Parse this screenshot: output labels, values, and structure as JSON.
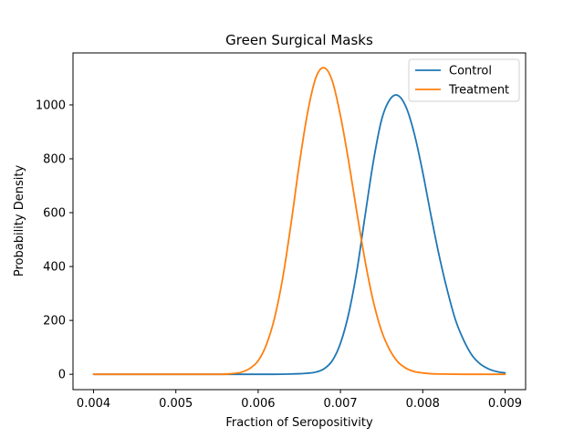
{
  "chart_data": {
    "type": "line",
    "title": "Green Surgical Masks",
    "xlabel": "Fraction of Seropositivity",
    "ylabel": "Probability Density",
    "xlim": [
      0.00375,
      0.00925
    ],
    "ylim": [
      -57,
      1193
    ],
    "x_ticks": [
      0.004,
      0.005,
      0.006,
      0.007,
      0.008,
      0.009
    ],
    "x_tick_labels": [
      "0.004",
      "0.005",
      "0.006",
      "0.007",
      "0.008",
      "0.009"
    ],
    "y_ticks": [
      0,
      200,
      400,
      600,
      800,
      1000
    ],
    "y_tick_labels": [
      "0",
      "200",
      "400",
      "600",
      "800",
      "1000"
    ],
    "grid": false,
    "legend_position": "top-right",
    "series": [
      {
        "name": "Control",
        "color": "#1f77b4",
        "x": [
          0.004,
          0.0055,
          0.006,
          0.0062,
          0.0064,
          0.0065,
          0.0066,
          0.0067,
          0.0068,
          0.0069,
          0.007,
          0.0071,
          0.0072,
          0.0073,
          0.0074,
          0.0075,
          0.0076,
          0.0077,
          0.0078,
          0.0079,
          0.008,
          0.0081,
          0.0082,
          0.0083,
          0.0084,
          0.0085,
          0.0086,
          0.0087,
          0.0088,
          0.0089,
          0.009
        ],
        "y": [
          0,
          0,
          0,
          0,
          1,
          2,
          4,
          8,
          20,
          50,
          115,
          225,
          385,
          590,
          790,
          945,
          1020,
          1035,
          990,
          890,
          750,
          590,
          440,
          310,
          200,
          125,
          70,
          38,
          20,
          10,
          5
        ]
      },
      {
        "name": "Treatment",
        "color": "#ff7f0e",
        "x": [
          0.004,
          0.0055,
          0.0056,
          0.0057,
          0.0058,
          0.0059,
          0.006,
          0.0061,
          0.0062,
          0.0063,
          0.0064,
          0.0065,
          0.0066,
          0.0067,
          0.0068,
          0.0069,
          0.007,
          0.0071,
          0.0072,
          0.0073,
          0.0074,
          0.0075,
          0.0076,
          0.0077,
          0.0078,
          0.0079,
          0.008,
          0.0081,
          0.0082,
          0.0085,
          0.009
        ],
        "y": [
          0,
          0,
          1,
          3,
          8,
          22,
          50,
          110,
          210,
          360,
          560,
          780,
          970,
          1100,
          1138,
          1090,
          960,
          790,
          600,
          420,
          270,
          160,
          90,
          45,
          22,
          10,
          5,
          2,
          1,
          0,
          0
        ]
      }
    ]
  }
}
